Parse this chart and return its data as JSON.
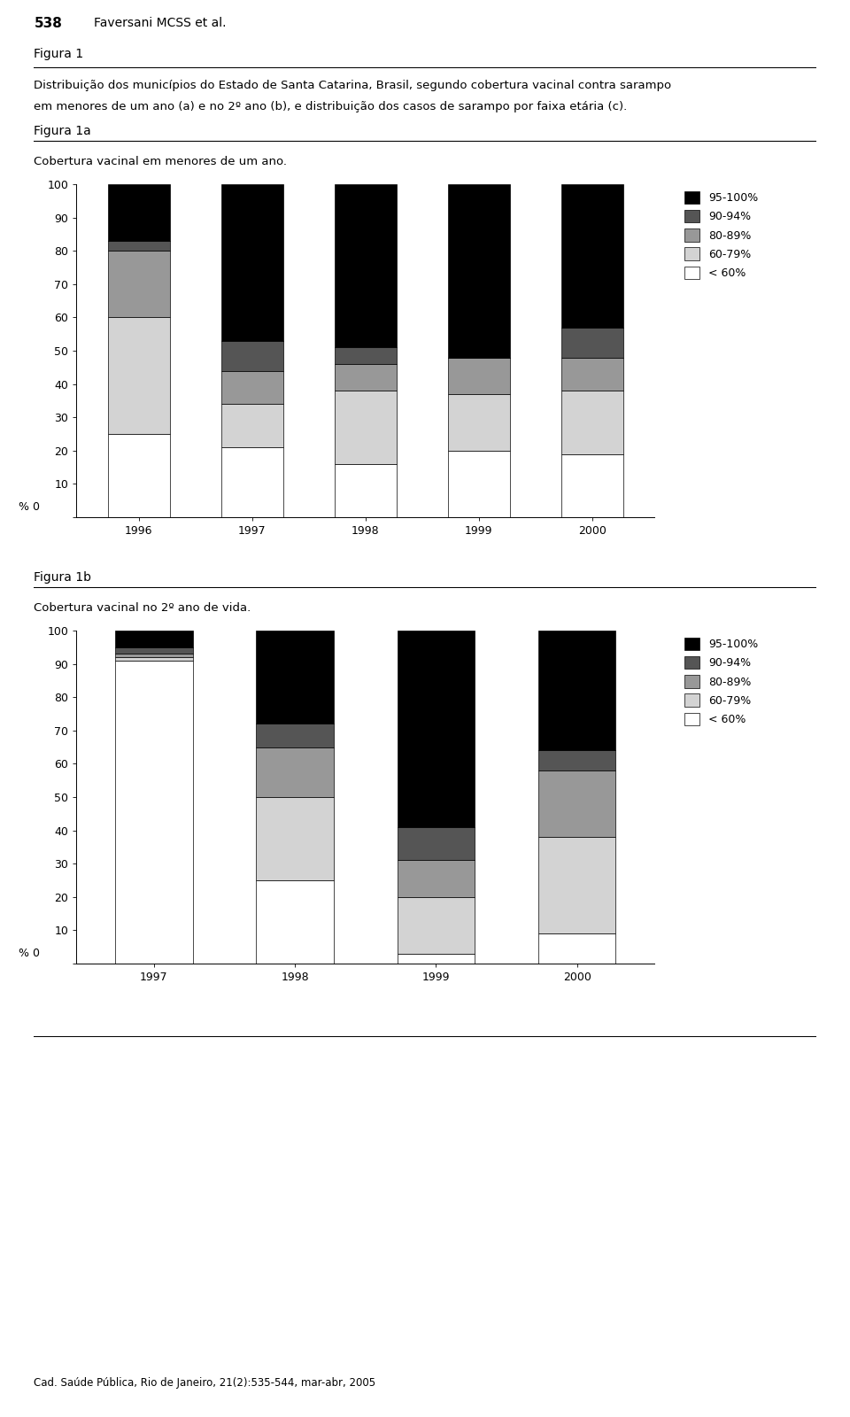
{
  "header_number": "538",
  "header_author": "Faversani MCSS et al.",
  "figura1_label": "Figura 1",
  "figura1_text_line1": "Distribuição dos municípios do Estado de Santa Catarina, Brasil, segundo cobertura vacinal contra sarampo",
  "figura1_text_line2": "em menores de um ano (a) e no 2º ano (b), e distribuição dos casos de sarampo por faixa etária (c).",
  "figura1a_label": "Figura 1a",
  "figura1a_subtitle": "Cobertura vacinal em menores de um ano.",
  "figura1b_label": "Figura 1b",
  "figura1b_subtitle": "Cobertura vacinal no 2º ano de vida.",
  "footer_text": "Cad. Saúde Pública, Rio de Janeiro, 21(2):535-544, mar-abr, 2005",
  "categories": [
    "< 60%",
    "60-79%",
    "80-89%",
    "90-94%",
    "95-100%"
  ],
  "colors": [
    "#ffffff",
    "#d3d3d3",
    "#989898",
    "#555555",
    "#000000"
  ],
  "edgecolor": "#000000",
  "fig1a_years": [
    "1996",
    "1997",
    "1998",
    "1999",
    "2000"
  ],
  "fig1a_data": {
    "lt60": [
      25,
      21,
      16,
      20,
      19
    ],
    "60_79": [
      35,
      13,
      22,
      17,
      19
    ],
    "80_89": [
      20,
      10,
      8,
      11,
      10
    ],
    "90_94": [
      3,
      9,
      5,
      0,
      9
    ],
    "95_100": [
      17,
      47,
      49,
      52,
      43
    ]
  },
  "fig1b_years": [
    "1997",
    "1998",
    "1999",
    "2000"
  ],
  "fig1b_data": {
    "lt60": [
      91,
      25,
      3,
      9
    ],
    "60_79": [
      1,
      25,
      17,
      29
    ],
    "80_89": [
      1,
      15,
      11,
      20
    ],
    "90_94": [
      2,
      7,
      10,
      6
    ],
    "95_100": [
      5,
      28,
      59,
      36
    ]
  },
  "ylim": [
    0,
    100
  ],
  "yticks": [
    0,
    10,
    20,
    30,
    40,
    50,
    60,
    70,
    80,
    90,
    100
  ],
  "legend_labels": [
    "95-100%",
    "90-94%",
    "80-89%",
    "60-79%",
    "< 60%"
  ]
}
